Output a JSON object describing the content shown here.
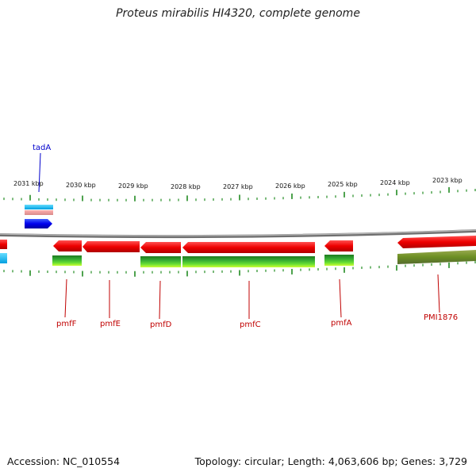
{
  "title": "Proteus mirabilis HI4320, complete genome",
  "footer": {
    "accession": "Accession: NC_010554",
    "topology": "Topology: circular; Length: 4,063,606 bp; Genes: 3,729"
  },
  "ruler_labels": [
    "2031 kbp",
    "2030 kbp",
    "2029 kbp",
    "2028 kbp",
    "2027 kbp",
    "2026 kbp",
    "2025 kbp",
    "2024 kbp",
    "2023 kbp"
  ],
  "genes": {
    "tadA": "tadA",
    "pmfF": "pmfF",
    "pmfE": "pmfE",
    "pmfD": "pmfD",
    "pmfC": "pmfC",
    "pmfA": "pmfA",
    "PMI1876": "PMI1876"
  },
  "colors": {
    "forward_cds": "#0000ee",
    "reverse_cds": "#ee0000",
    "tick": "#228b22",
    "backbone": "#888888",
    "label_red": "#c00000",
    "label_blue": "#0000cc"
  }
}
